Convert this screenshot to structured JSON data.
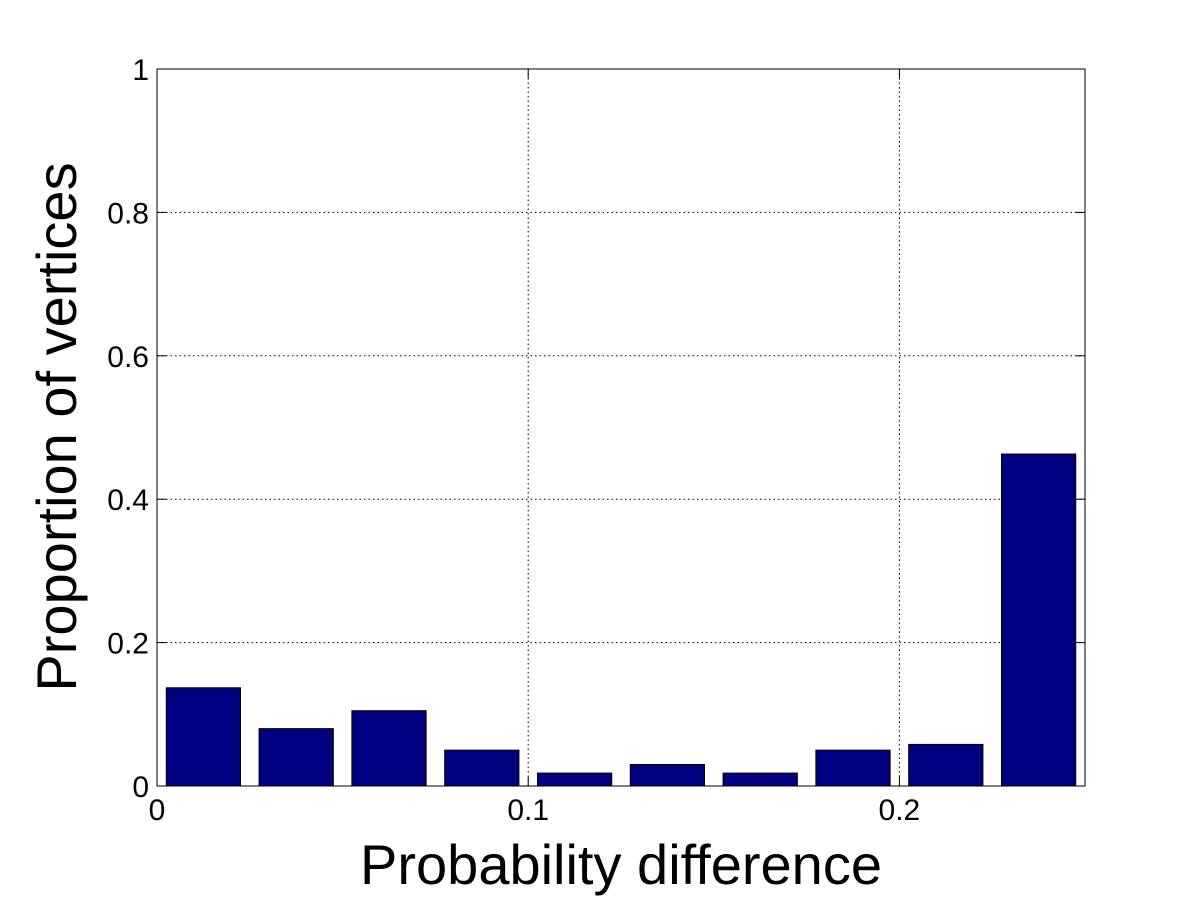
{
  "chart_data": {
    "type": "bar",
    "title": "",
    "xlabel": "Probability difference",
    "ylabel": "Proportion of vertices",
    "xlim": [
      0,
      0.25
    ],
    "ylim": [
      0,
      1
    ],
    "x_ticks": [
      0,
      0.1,
      0.2
    ],
    "x_tick_labels": [
      "0",
      "0.1",
      "0.2"
    ],
    "y_ticks": [
      0,
      0.2,
      0.4,
      0.6,
      0.8,
      1
    ],
    "y_tick_labels": [
      "0",
      "0.2",
      "0.4",
      "0.6",
      "0.8",
      "1"
    ],
    "grid": true,
    "bar_color": "#000080",
    "bin_width": 0.025,
    "x": [
      0.0125,
      0.0375,
      0.0625,
      0.0875,
      0.1125,
      0.1375,
      0.1625,
      0.1875,
      0.2125,
      0.2375
    ],
    "values": [
      0.137,
      0.08,
      0.105,
      0.05,
      0.018,
      0.03,
      0.018,
      0.05,
      0.058,
      0.463
    ]
  }
}
